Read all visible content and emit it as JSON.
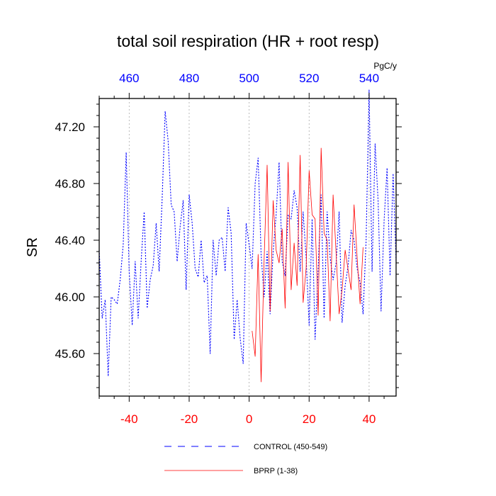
{
  "chart_data": {
    "type": "line",
    "title": "total soil respiration (HR + root resp)",
    "ylabel": "SR",
    "top_axis_unit": "PgC/y",
    "xlim": [
      -50,
      49
    ],
    "ylim": [
      45.3,
      47.4
    ],
    "bottom_ticks": [
      -40,
      -20,
      0,
      20,
      40
    ],
    "bottom_tick_labels": [
      "-40",
      "-20",
      "0",
      "20",
      "40"
    ],
    "top_ticks": [
      -40,
      -20,
      0,
      20,
      40
    ],
    "top_tick_labels": [
      "460",
      "480",
      "500",
      "520",
      "540"
    ],
    "y_ticks": [
      45.6,
      46.0,
      46.4,
      46.8,
      47.2
    ],
    "y_tick_labels": [
      "45.60",
      "46.00",
      "46.40",
      "46.80",
      "47.20"
    ],
    "bottom_tick_color": "#ff0000",
    "top_tick_color": "#0000ff",
    "series": [
      {
        "name": "CONTROL (450-549)",
        "color": "#0000ff",
        "dashed": true,
        "x": [
          -50,
          -49,
          -48,
          -47,
          -46,
          -45,
          -44,
          -43,
          -42,
          -41,
          -40,
          -39,
          -38,
          -37,
          -36,
          -35,
          -34,
          -33,
          -32,
          -31,
          -30,
          -29,
          -28,
          -27,
          -26,
          -25,
          -24,
          -23,
          -22,
          -21,
          -20,
          -19,
          -18,
          -17,
          -16,
          -15,
          -14,
          -13,
          -12,
          -11,
          -10,
          -9,
          -8,
          -7,
          -6,
          -5,
          -4,
          -3,
          -2,
          -1,
          0,
          1,
          2,
          3,
          4,
          5,
          6,
          7,
          8,
          9,
          10,
          11,
          12,
          13,
          14,
          15,
          16,
          17,
          18,
          19,
          20,
          21,
          22,
          23,
          24,
          25,
          26,
          27,
          28,
          29,
          30,
          31,
          32,
          33,
          34,
          35,
          36,
          37,
          38,
          39,
          40,
          41,
          42,
          43,
          44,
          45,
          46,
          47,
          48,
          49
        ],
        "values": [
          46.33,
          45.85,
          45.98,
          45.44,
          46.0,
          45.98,
          45.95,
          46.12,
          46.37,
          47.02,
          46.18,
          45.8,
          46.25,
          45.85,
          46.26,
          46.6,
          45.92,
          46.12,
          46.22,
          46.52,
          46.18,
          46.7,
          47.31,
          47.1,
          46.65,
          46.6,
          46.25,
          46.5,
          46.68,
          46.05,
          46.72,
          46.52,
          46.2,
          46.14,
          46.4,
          46.1,
          46.15,
          45.6,
          46.4,
          46.15,
          46.4,
          46.42,
          46.18,
          46.63,
          46.45,
          45.7,
          45.98,
          45.71,
          45.53,
          46.52,
          46.37,
          46.2,
          46.8,
          46.98,
          46.3,
          46.0,
          46.32,
          45.88,
          46.32,
          46.58,
          46.95,
          46.25,
          46.15,
          46.58,
          46.55,
          46.75,
          46.63,
          46.18,
          46.6,
          46.28,
          45.8,
          46.55,
          45.7,
          46.2,
          46.72,
          45.85,
          46.6,
          46.28,
          46.12,
          46.24,
          46.6,
          45.82,
          46.08,
          46.22,
          46.47,
          46.4,
          46.2,
          46.1,
          45.88,
          46.4,
          47.46,
          46.18,
          47.08,
          46.68,
          45.9,
          46.54,
          46.91,
          46.15,
          46.87,
          46.25
        ]
      },
      {
        "name": "BPRP (1-38)",
        "color": "#ff0000",
        "dashed": false,
        "x": [
          1,
          2,
          3,
          4,
          5,
          6,
          7,
          8,
          9,
          10,
          11,
          12,
          13,
          14,
          15,
          16,
          17,
          18,
          19,
          20,
          21,
          22,
          23,
          24,
          25,
          26,
          27,
          28,
          29,
          30,
          31,
          32,
          33,
          34,
          35,
          36,
          37,
          38
        ],
        "values": [
          45.76,
          45.58,
          46.3,
          45.4,
          46.27,
          46.93,
          45.9,
          46.68,
          46.33,
          46.24,
          46.48,
          45.92,
          46.95,
          46.05,
          46.38,
          46.08,
          47.0,
          45.96,
          46.2,
          46.89,
          46.58,
          46.55,
          45.87,
          47.05,
          46.45,
          46.4,
          45.83,
          46.72,
          46.3,
          45.88,
          46.05,
          46.33,
          46.19,
          46.05,
          46.65,
          46.28,
          45.95,
          46.35
        ]
      }
    ],
    "legend_position": "bottom"
  }
}
